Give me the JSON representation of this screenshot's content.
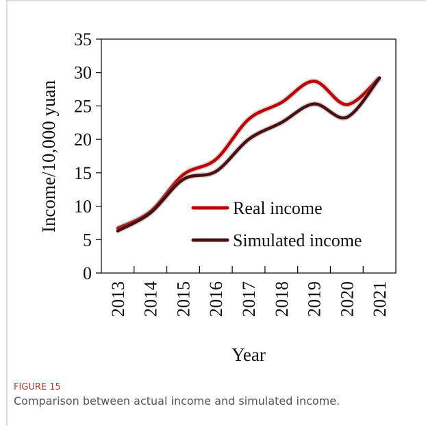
{
  "chart_data": {
    "type": "line",
    "x_label": "Year",
    "y_label": "Income/10,000 yuan",
    "categories": [
      "2013",
      "2014",
      "2015",
      "2016",
      "2017",
      "2018",
      "2019",
      "2020",
      "2021"
    ],
    "series": [
      {
        "name": "Real income",
        "color": "#c00000",
        "values": [
          6.7,
          9.2,
          14.7,
          17,
          23,
          25.5,
          28.7,
          25.2,
          29.2
        ]
      },
      {
        "name": "Simulated income",
        "color": "#4a0f0f",
        "values": [
          6.3,
          9,
          14,
          15.2,
          20,
          22.5,
          25.3,
          23.3,
          29.2
        ]
      }
    ],
    "ylim": [
      0,
      35
    ],
    "yticks": [
      0,
      5,
      10,
      15,
      20,
      25,
      30,
      35
    ],
    "grid": false,
    "legend": "lower right"
  },
  "caption": {
    "label": "FIGURE 15",
    "text": "Comparison between actual income and simulated income."
  }
}
